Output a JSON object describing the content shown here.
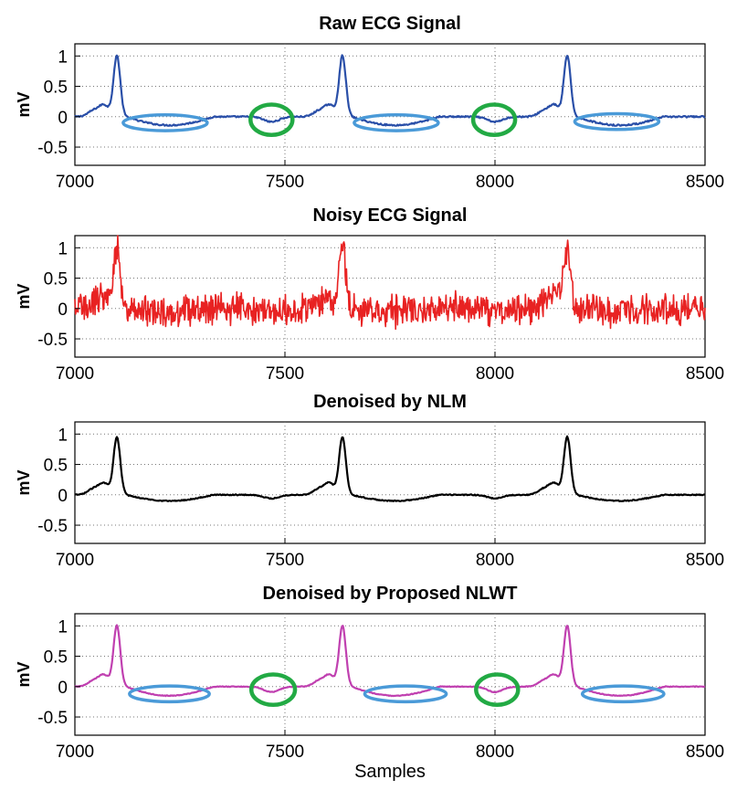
{
  "chart_data": [
    {
      "type": "line",
      "title": "Raw ECG Signal",
      "xlabel": "",
      "ylabel": "mV",
      "xlim": [
        7000,
        8500
      ],
      "ylim": [
        -0.8,
        1.2
      ],
      "xticks": [
        7000,
        7500,
        8000,
        8500
      ],
      "yticks": [
        1,
        0.5,
        0,
        -0.5
      ],
      "ytick_labels": [
        "1",
        "0.5",
        "0",
        "-0.5"
      ],
      "grid": true,
      "color": "#2a4fa8",
      "noise": 0.012,
      "beats": [
        7100,
        7637,
        8172
      ],
      "peak": 1.0,
      "trough": -0.14,
      "series": [
        {
          "name": "Raw ECG Signal"
        }
      ],
      "annotations": [
        {
          "shape": "ellipse",
          "color": "#4a9ad8",
          "cx": 7215,
          "cy": -0.1,
          "rx": 100,
          "ry": 0.13
        },
        {
          "shape": "circle",
          "color": "#22aa44",
          "cx": 7468,
          "cy": -0.05,
          "rx": 50,
          "ry": 0.25
        },
        {
          "shape": "ellipse",
          "color": "#4a9ad8",
          "cx": 7765,
          "cy": -0.1,
          "rx": 100,
          "ry": 0.13
        },
        {
          "shape": "circle",
          "color": "#22aa44",
          "cx": 7998,
          "cy": -0.05,
          "rx": 50,
          "ry": 0.25
        },
        {
          "shape": "ellipse",
          "color": "#4a9ad8",
          "cx": 8290,
          "cy": -0.08,
          "rx": 100,
          "ry": 0.13
        }
      ]
    },
    {
      "type": "line",
      "title": "Noisy ECG Signal",
      "xlabel": "",
      "ylabel": "mV",
      "xlim": [
        7000,
        8500
      ],
      "ylim": [
        -0.8,
        1.2
      ],
      "xticks": [
        7000,
        7500,
        8000,
        8500
      ],
      "yticks": [
        1,
        0.5,
        0,
        -0.5
      ],
      "ytick_labels": [
        "1",
        "0.5",
        "0",
        "-0.5"
      ],
      "grid": true,
      "color": "#e82222",
      "noise": 0.2,
      "beats": [
        7100,
        7637,
        8172
      ],
      "peak": 1.0,
      "trough": -0.05,
      "series": [
        {
          "name": "Noisy ECG Signal"
        }
      ],
      "annotations": []
    },
    {
      "type": "line",
      "title": "Denoised by NLM",
      "xlabel": "",
      "ylabel": "mV",
      "xlim": [
        7000,
        8500
      ],
      "ylim": [
        -0.8,
        1.2
      ],
      "xticks": [
        7000,
        7500,
        8000,
        8500
      ],
      "yticks": [
        1,
        0.5,
        0,
        -0.5
      ],
      "ytick_labels": [
        "1",
        "0.5",
        "0",
        "-0.5"
      ],
      "grid": true,
      "color": "#000000",
      "noise": 0.008,
      "beats": [
        7100,
        7637,
        8172
      ],
      "peak": 0.95,
      "trough": -0.1,
      "series": [
        {
          "name": "Denoised by NLM"
        }
      ],
      "annotations": []
    },
    {
      "type": "line",
      "title": "Denoised by Proposed NLWT",
      "xlabel": "Samples",
      "ylabel": "mV",
      "xlim": [
        7000,
        8500
      ],
      "ylim": [
        -0.8,
        1.2
      ],
      "xticks": [
        7000,
        7500,
        8000,
        8500
      ],
      "yticks": [
        1,
        0.5,
        0,
        -0.5
      ],
      "ytick_labels": [
        "1",
        "0.5",
        "0",
        "-0.5"
      ],
      "grid": true,
      "color": "#c040b0",
      "noise": 0.006,
      "beats": [
        7100,
        7637,
        8172
      ],
      "peak": 1.0,
      "trough": -0.15,
      "series": [
        {
          "name": "Denoised by Proposed NLWT"
        }
      ],
      "annotations": [
        {
          "shape": "ellipse",
          "color": "#4a9ad8",
          "cx": 7225,
          "cy": -0.12,
          "rx": 95,
          "ry": 0.13
        },
        {
          "shape": "circle",
          "color": "#22aa44",
          "cx": 7472,
          "cy": -0.05,
          "rx": 52,
          "ry": 0.25
        },
        {
          "shape": "ellipse",
          "color": "#4a9ad8",
          "cx": 7787,
          "cy": -0.12,
          "rx": 97,
          "ry": 0.13
        },
        {
          "shape": "circle",
          "color": "#22aa44",
          "cx": 8005,
          "cy": -0.05,
          "rx": 50,
          "ry": 0.25
        },
        {
          "shape": "ellipse",
          "color": "#4a9ad8",
          "cx": 8305,
          "cy": -0.12,
          "rx": 97,
          "ry": 0.13
        }
      ]
    }
  ]
}
